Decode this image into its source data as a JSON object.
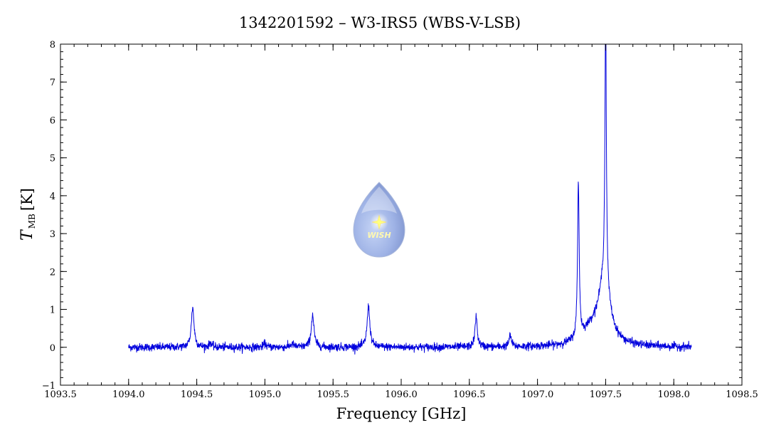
{
  "chart_data": {
    "type": "line",
    "title": "1342201592 – W3-IRS5 (WBS-V-LSB)",
    "xlabel": "Frequency [GHz]",
    "ylabel": {
      "symbol": "T",
      "subscript": "MB",
      "unit": "[K]"
    },
    "xlim": [
      1093.5,
      1098.5
    ],
    "ylim": [
      -1,
      8
    ],
    "x_ticks": [
      1093.5,
      1094.0,
      1094.5,
      1095.0,
      1095.5,
      1096.0,
      1096.5,
      1097.0,
      1097.5,
      1098.0,
      1098.5
    ],
    "x_tick_labels": [
      "1093.5",
      "1094.0",
      "1094.5",
      "1095.0",
      "1095.5",
      "1096.0",
      "1096.5",
      "1097.0",
      "1097.5",
      "1098.0",
      "1098.5"
    ],
    "y_ticks": [
      -1,
      0,
      1,
      2,
      3,
      4,
      5,
      6,
      7,
      8
    ],
    "y_tick_labels": [
      "−1",
      "0",
      "1",
      "2",
      "3",
      "4",
      "5",
      "6",
      "7",
      "8"
    ],
    "grid": false,
    "series": [
      {
        "color": "#0000dd",
        "x_range": [
          1094.0,
          1098.13
        ],
        "baseline": 0.0,
        "noise_rms": 0.05,
        "lines": [
          {
            "center": 1094.47,
            "peak": 1.05,
            "width": 0.012
          },
          {
            "center": 1094.6,
            "peak": 0.12,
            "width": 0.01
          },
          {
            "center": 1095.0,
            "peak": 0.1,
            "width": 0.01
          },
          {
            "center": 1095.2,
            "peak": 0.08,
            "width": 0.015
          },
          {
            "center": 1095.35,
            "peak": 0.85,
            "width": 0.012
          },
          {
            "center": 1095.76,
            "peak": 1.08,
            "width": 0.012
          },
          {
            "center": 1096.55,
            "peak": 0.8,
            "width": 0.01
          },
          {
            "center": 1096.8,
            "peak": 0.3,
            "width": 0.01
          },
          {
            "center": 1097.3,
            "peak": 4.15,
            "width": 0.007
          },
          {
            "center": 1097.5,
            "peak": 7.3,
            "width": 0.006
          }
        ],
        "broad_components": [
          {
            "center": 1097.49,
            "peak": 1.6,
            "width": 0.05
          },
          {
            "center": 1097.4,
            "peak": 0.4,
            "width": 0.09
          }
        ]
      }
    ]
  },
  "logo": {
    "text": "WISH"
  }
}
